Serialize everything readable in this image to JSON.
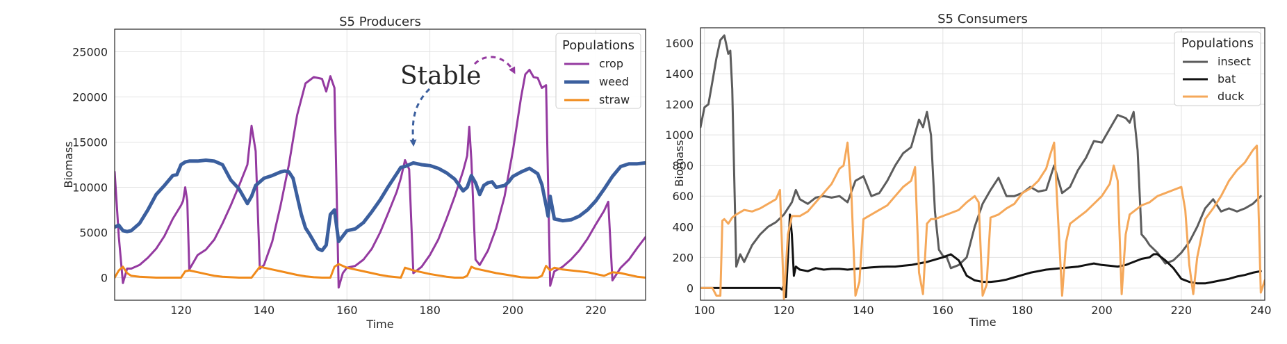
{
  "chart_data": [
    {
      "type": "line",
      "title": "S5 Producers",
      "xlabel": "Time",
      "ylabel": "Biomass",
      "xlim": [
        104,
        232
      ],
      "ylim": [
        -2500,
        27500
      ],
      "xticks": [
        120,
        140,
        160,
        180,
        200,
        220
      ],
      "yticks": [
        0,
        5000,
        10000,
        15000,
        20000,
        25000
      ],
      "grid": true,
      "legend": {
        "title": "Populations",
        "placement": "top-right"
      },
      "annotation": {
        "text": "Stable"
      },
      "series": [
        {
          "name": "crop",
          "color": "#943aa0",
          "width": 3,
          "x": [
            104,
            105,
            106,
            107,
            108,
            110,
            112,
            114,
            116,
            118,
            120,
            120.5,
            121,
            121.5,
            122,
            124,
            126,
            128,
            130,
            132,
            134,
            136,
            137,
            138,
            139,
            140,
            142,
            144,
            146,
            148,
            150,
            152,
            154,
            155,
            156,
            157,
            158,
            159,
            160,
            162,
            164,
            166,
            168,
            170,
            172,
            173,
            174,
            175,
            176,
            178,
            180,
            182,
            184,
            186,
            188,
            189,
            189.5,
            190,
            191,
            192,
            194,
            196,
            198,
            200,
            202,
            203,
            204,
            205,
            206,
            207,
            208,
            209,
            210,
            212,
            214,
            216,
            218,
            220,
            222,
            223,
            224,
            226,
            228,
            230,
            232
          ],
          "y": [
            11700,
            4500,
            -600,
            1000,
            1000,
            1400,
            2200,
            3200,
            4600,
            6500,
            8000,
            8500,
            10000,
            8500,
            900,
            2500,
            3100,
            4200,
            6000,
            8000,
            10200,
            12500,
            16800,
            14000,
            1000,
            1400,
            4000,
            8000,
            12500,
            18000,
            21500,
            22200,
            22000,
            20600,
            22300,
            21000,
            -1100,
            500,
            1100,
            1300,
            2000,
            3200,
            5000,
            7200,
            9500,
            11000,
            13000,
            12000,
            500,
            1200,
            2500,
            4200,
            6500,
            9000,
            11800,
            13500,
            16700,
            13000,
            2000,
            1400,
            3000,
            5500,
            9000,
            14000,
            20000,
            22500,
            23000,
            22200,
            22100,
            21000,
            21300,
            -900,
            700,
            1200,
            2000,
            3000,
            4300,
            5900,
            7400,
            8400,
            -300,
            1100,
            2000,
            3300,
            4500
          ]
        },
        {
          "name": "weed",
          "color": "#3b5f9e",
          "width": 5,
          "x": [
            104,
            105,
            106,
            107,
            108,
            110,
            112,
            114,
            116,
            118,
            119,
            120,
            121,
            122,
            124,
            126,
            128,
            130,
            132,
            134,
            136,
            137,
            138,
            139,
            140,
            142,
            144,
            145,
            146,
            147,
            148,
            149,
            150,
            151,
            152,
            153,
            154,
            155,
            156,
            157,
            158,
            160,
            162,
            164,
            166,
            168,
            170,
            172,
            173,
            174,
            176,
            178,
            180,
            182,
            184,
            186,
            188,
            189,
            190,
            191,
            192,
            193,
            194,
            195,
            196,
            197,
            198,
            199,
            200,
            202,
            204,
            206,
            207,
            208,
            208.5,
            209,
            210,
            212,
            214,
            216,
            218,
            220,
            222,
            224,
            226,
            228,
            230,
            232
          ],
          "y": [
            5600,
            5800,
            5200,
            5100,
            5200,
            6000,
            7500,
            9200,
            10200,
            11300,
            11400,
            12500,
            12800,
            12900,
            12900,
            13000,
            12900,
            12500,
            10800,
            9800,
            8200,
            9000,
            10200,
            10600,
            11000,
            11300,
            11700,
            11800,
            11700,
            11000,
            9000,
            7000,
            5500,
            4800,
            4000,
            3200,
            3000,
            3600,
            7000,
            7500,
            4000,
            5200,
            5400,
            6100,
            7300,
            8600,
            10100,
            11500,
            12200,
            12300,
            12700,
            12500,
            12400,
            12100,
            11600,
            10900,
            9600,
            10000,
            11300,
            10500,
            9200,
            10200,
            10500,
            10600,
            10000,
            10100,
            10200,
            10600,
            11200,
            11700,
            12100,
            11500,
            10300,
            8000,
            6800,
            9000,
            6500,
            6300,
            6400,
            6800,
            7500,
            8500,
            9800,
            11200,
            12300,
            12600,
            12600,
            12700
          ]
        },
        {
          "name": "straw",
          "color": "#f08a1a",
          "width": 3,
          "x": [
            104,
            105,
            106,
            107,
            108,
            110,
            112,
            114,
            116,
            118,
            120,
            121,
            122,
            124,
            126,
            128,
            130,
            132,
            134,
            136,
            137,
            138,
            139,
            140,
            142,
            144,
            146,
            148,
            150,
            152,
            154,
            156,
            157,
            158,
            160,
            162,
            164,
            166,
            168,
            170,
            172,
            173,
            174,
            176,
            178,
            180,
            182,
            184,
            186,
            188,
            189,
            190,
            191,
            192,
            194,
            196,
            198,
            200,
            202,
            204,
            206,
            207,
            208,
            209,
            210,
            212,
            214,
            216,
            218,
            220,
            222,
            224,
            226,
            228,
            230,
            232
          ],
          "y": [
            0,
            800,
            1200,
            500,
            200,
            100,
            50,
            0,
            0,
            0,
            0,
            700,
            800,
            600,
            400,
            200,
            100,
            50,
            0,
            0,
            0,
            600,
            1200,
            1100,
            900,
            700,
            500,
            300,
            150,
            50,
            0,
            0,
            1200,
            1500,
            1100,
            900,
            700,
            500,
            300,
            150,
            50,
            0,
            1100,
            800,
            600,
            400,
            250,
            100,
            0,
            0,
            200,
            1200,
            1000,
            900,
            700,
            500,
            350,
            200,
            50,
            0,
            0,
            200,
            1300,
            800,
            1100,
            900,
            800,
            700,
            600,
            400,
            200,
            600,
            500,
            300,
            100,
            0
          ]
        }
      ]
    },
    {
      "type": "line",
      "title": "S5 Consumers",
      "xlabel": "Time",
      "ylabel": "Biomass",
      "xlim": [
        99,
        241
      ],
      "ylim": [
        -80,
        1700
      ],
      "xticks": [
        100,
        120,
        140,
        160,
        180,
        200,
        220,
        240
      ],
      "yticks": [
        0,
        200,
        400,
        600,
        800,
        1000,
        1200,
        1400,
        1600
      ],
      "grid": true,
      "legend": {
        "title": "Populations",
        "placement": "top-right"
      },
      "series": [
        {
          "name": "insect",
          "color": "#5c5c5c",
          "width": 3,
          "x": [
            99,
            100,
            101,
            102,
            103,
            104,
            105,
            106,
            106.5,
            107,
            108,
            109,
            110,
            112,
            114,
            116,
            118,
            120,
            122,
            123,
            124,
            126,
            128,
            130,
            132,
            134,
            136,
            138,
            140,
            142,
            144,
            146,
            148,
            150,
            152,
            154,
            155,
            156,
            157,
            158,
            159,
            160,
            161,
            162,
            164,
            166,
            168,
            170,
            172,
            174,
            176,
            178,
            180,
            182,
            184,
            186,
            188,
            190,
            192,
            194,
            196,
            198,
            200,
            202,
            204,
            206,
            207,
            208,
            209,
            210,
            211,
            212,
            214,
            216,
            218,
            220,
            222,
            224,
            226,
            228,
            230,
            232,
            234,
            236,
            238,
            240
          ],
          "y": [
            1050,
            1180,
            1200,
            1350,
            1500,
            1620,
            1650,
            1530,
            1550,
            1300,
            140,
            220,
            170,
            280,
            350,
            400,
            430,
            480,
            560,
            640,
            580,
            550,
            590,
            600,
            590,
            600,
            560,
            700,
            730,
            600,
            620,
            700,
            800,
            880,
            920,
            1100,
            1050,
            1150,
            1000,
            500,
            250,
            210,
            200,
            130,
            150,
            200,
            400,
            550,
            640,
            720,
            600,
            600,
            620,
            660,
            630,
            640,
            800,
            620,
            660,
            770,
            850,
            960,
            950,
            1040,
            1130,
            1110,
            1080,
            1150,
            900,
            350,
            320,
            280,
            230,
            160,
            180,
            230,
            300,
            400,
            520,
            580,
            500,
            520,
            500,
            520,
            550,
            600
          ]
        },
        {
          "name": "bat",
          "color": "#111111",
          "width": 3,
          "x": [
            99,
            100,
            105,
            110,
            115,
            118,
            119,
            119.5,
            120,
            120.5,
            121,
            121.5,
            122,
            122.5,
            123,
            124,
            126,
            128,
            130,
            132,
            134,
            136,
            138,
            140,
            142,
            144,
            146,
            148,
            150,
            152,
            154,
            156,
            158,
            160,
            162,
            164,
            166,
            168,
            170,
            172,
            174,
            176,
            178,
            180,
            182,
            184,
            186,
            188,
            190,
            192,
            194,
            196,
            198,
            200,
            202,
            204,
            206,
            208,
            210,
            212,
            213,
            214,
            216,
            218,
            220,
            222,
            224,
            226,
            228,
            230,
            232,
            234,
            236,
            238,
            240
          ],
          "y": [
            0,
            0,
            0,
            0,
            0,
            0,
            0,
            -10,
            20,
            -60,
            200,
            480,
            350,
            80,
            140,
            120,
            110,
            130,
            120,
            125,
            125,
            120,
            125,
            130,
            135,
            138,
            140,
            140,
            145,
            150,
            160,
            170,
            185,
            200,
            220,
            180,
            80,
            50,
            40,
            40,
            45,
            55,
            70,
            85,
            100,
            110,
            120,
            125,
            130,
            135,
            140,
            150,
            160,
            150,
            145,
            140,
            150,
            170,
            190,
            200,
            220,
            220,
            180,
            130,
            60,
            40,
            30,
            30,
            40,
            50,
            60,
            75,
            85,
            100,
            110
          ]
        },
        {
          "name": "duck",
          "color": "#f5a85a",
          "width": 3,
          "x": [
            99,
            100,
            102,
            103,
            104,
            104.5,
            105,
            106,
            107,
            108,
            110,
            112,
            114,
            116,
            118,
            119,
            120,
            121,
            122,
            124,
            126,
            128,
            130,
            132,
            134,
            135,
            136,
            137,
            138,
            139,
            140,
            142,
            144,
            146,
            148,
            150,
            152,
            153,
            154,
            155,
            156,
            157,
            158,
            160,
            162,
            164,
            166,
            168,
            169,
            170,
            171,
            172,
            174,
            176,
            178,
            180,
            182,
            184,
            186,
            187,
            188,
            189,
            190,
            191,
            192,
            194,
            196,
            198,
            200,
            202,
            203,
            204,
            205,
            206,
            207,
            208,
            210,
            212,
            214,
            216,
            218,
            220,
            221,
            222,
            223,
            224,
            226,
            228,
            230,
            232,
            234,
            236,
            238,
            239,
            240,
            241
          ],
          "y": [
            0,
            0,
            0,
            -50,
            -50,
            440,
            450,
            420,
            460,
            480,
            510,
            500,
            520,
            550,
            580,
            640,
            -70,
            350,
            470,
            470,
            500,
            560,
            620,
            680,
            780,
            800,
            950,
            600,
            -50,
            40,
            450,
            480,
            510,
            540,
            600,
            660,
            700,
            790,
            100,
            -40,
            420,
            450,
            450,
            470,
            490,
            510,
            560,
            600,
            560,
            -50,
            20,
            460,
            480,
            520,
            550,
            620,
            650,
            700,
            780,
            870,
            950,
            450,
            -50,
            300,
            420,
            460,
            500,
            550,
            600,
            680,
            800,
            700,
            -40,
            350,
            480,
            500,
            540,
            560,
            600,
            620,
            640,
            660,
            510,
            150,
            -40,
            200,
            450,
            520,
            600,
            700,
            770,
            820,
            900,
            930,
            -30,
            50
          ]
        }
      ]
    }
  ]
}
